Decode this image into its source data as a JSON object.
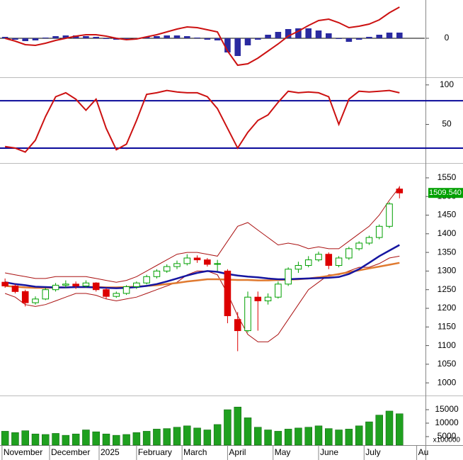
{
  "chart_data": [
    {
      "type": "line",
      "ylim": [
        -54,
        54
      ],
      "yticks": [
        0
      ],
      "series": [
        {
          "color": "#cc1111",
          "values": [
            0,
            -4,
            -9,
            -10,
            -7,
            -3,
            0,
            3,
            5,
            5,
            3,
            0,
            -2,
            -1,
            2,
            5,
            9,
            13,
            16,
            15,
            12,
            9,
            -18,
            -38,
            -36,
            -28,
            -18,
            -8,
            3,
            10,
            18,
            25,
            27,
            22,
            15,
            17,
            20,
            26,
            36,
            44
          ]
        }
      ],
      "histogram": {
        "color": "#2a2aa0",
        "values": [
          2,
          -2,
          -4,
          -3,
          1,
          3,
          4,
          4,
          3,
          2,
          -1,
          -2,
          -2,
          0,
          2,
          3,
          4,
          4,
          3,
          1,
          -2,
          -3,
          -20,
          -25,
          -10,
          -2,
          5,
          9,
          13,
          14,
          14,
          11,
          7,
          -1,
          -5,
          -2,
          2,
          5,
          8,
          8
        ]
      }
    },
    {
      "type": "line",
      "ylim": [
        2,
        107
      ],
      "yticks": [
        50,
        100
      ],
      "levels": [
        80,
        20
      ],
      "level_color": "#0a0a9a",
      "series": [
        {
          "color": "#cc1111",
          "values": [
            22,
            20,
            15,
            30,
            60,
            85,
            90,
            82,
            68,
            82,
            45,
            18,
            25,
            55,
            88,
            90,
            93,
            91,
            90,
            90,
            85,
            70,
            45,
            20,
            40,
            55,
            62,
            78,
            92,
            90,
            91,
            90,
            85,
            50,
            82,
            92,
            91,
            92,
            93,
            90
          ]
        }
      ]
    },
    {
      "type": "candlestick",
      "ylim": [
        968,
        1586
      ],
      "yticks": [
        1000,
        1050,
        1100,
        1150,
        1200,
        1250,
        1300,
        1350,
        1400,
        1450,
        1500,
        1550
      ],
      "up_color": "#00a000",
      "down_color": "#dd0000",
      "open": [
        1270,
        1260,
        1245,
        1215,
        1225,
        1250,
        1262,
        1265,
        1260,
        1268,
        1250,
        1232,
        1240,
        1258,
        1268,
        1285,
        1300,
        1312,
        1320,
        1335,
        1330,
        1318,
        1300,
        1170,
        1140,
        1230,
        1220,
        1230,
        1265,
        1305,
        1315,
        1330,
        1345,
        1315,
        1335,
        1360,
        1375,
        1390,
        1420,
        1520
      ],
      "high": [
        1280,
        1265,
        1250,
        1232,
        1255,
        1268,
        1275,
        1272,
        1275,
        1270,
        1255,
        1245,
        1262,
        1272,
        1290,
        1305,
        1318,
        1328,
        1345,
        1342,
        1335,
        1330,
        1305,
        1190,
        1245,
        1245,
        1240,
        1272,
        1310,
        1325,
        1340,
        1352,
        1350,
        1340,
        1365,
        1380,
        1395,
        1425,
        1485,
        1528
      ],
      "low": [
        1255,
        1240,
        1205,
        1210,
        1222,
        1245,
        1255,
        1252,
        1256,
        1245,
        1225,
        1228,
        1236,
        1252,
        1264,
        1280,
        1295,
        1305,
        1315,
        1322,
        1312,
        1300,
        1160,
        1085,
        1135,
        1140,
        1210,
        1226,
        1260,
        1295,
        1310,
        1325,
        1305,
        1310,
        1330,
        1355,
        1370,
        1385,
        1415,
        1495
      ],
      "close": [
        1260,
        1245,
        1215,
        1225,
        1250,
        1262,
        1265,
        1260,
        1268,
        1250,
        1232,
        1240,
        1258,
        1268,
        1285,
        1300,
        1312,
        1320,
        1335,
        1330,
        1318,
        1320,
        1180,
        1140,
        1230,
        1220,
        1230,
        1265,
        1305,
        1315,
        1330,
        1345,
        1315,
        1335,
        1360,
        1375,
        1390,
        1420,
        1480,
        1509.54
      ],
      "last_price_label": "1509.540",
      "last_price_color": "#00a000",
      "lines": [
        {
          "color": "#aa1111",
          "width": 1,
          "values": [
            1295,
            1290,
            1285,
            1280,
            1280,
            1285,
            1285,
            1285,
            1285,
            1280,
            1275,
            1270,
            1275,
            1285,
            1300,
            1315,
            1330,
            1345,
            1350,
            1350,
            1345,
            1340,
            1380,
            1420,
            1430,
            1410,
            1390,
            1370,
            1375,
            1370,
            1360,
            1365,
            1360,
            1360,
            1380,
            1400,
            1420,
            1450,
            1490,
            1525
          ]
        },
        {
          "color": "#aa1111",
          "width": 1,
          "values": [
            1240,
            1230,
            1210,
            1205,
            1210,
            1220,
            1230,
            1240,
            1240,
            1235,
            1225,
            1220,
            1225,
            1230,
            1240,
            1250,
            1260,
            1270,
            1290,
            1300,
            1300,
            1290,
            1240,
            1180,
            1130,
            1110,
            1110,
            1130,
            1170,
            1210,
            1250,
            1270,
            1290,
            1290,
            1300,
            1310,
            1310,
            1320,
            1335,
            1340
          ]
        },
        {
          "color": "#e07a30",
          "width": 2.5,
          "values": [
            1260,
            1258,
            1256,
            1255,
            1255,
            1256,
            1256,
            1257,
            1257,
            1257,
            1256,
            1256,
            1257,
            1258,
            1260,
            1262,
            1265,
            1268,
            1272,
            1275,
            1278,
            1278,
            1277,
            1276,
            1276,
            1275,
            1275,
            1276,
            1277,
            1278,
            1280,
            1283,
            1287,
            1292,
            1297,
            1302,
            1307,
            1312,
            1317,
            1322
          ]
        },
        {
          "color": "#1515a0",
          "width": 2.5,
          "values": [
            1270,
            1265,
            1262,
            1258,
            1257,
            1256,
            1256,
            1257,
            1257,
            1256,
            1255,
            1254,
            1255,
            1257,
            1260,
            1265,
            1272,
            1280,
            1288,
            1295,
            1300,
            1298,
            1292,
            1288,
            1285,
            1283,
            1280,
            1278,
            1278,
            1279,
            1280,
            1281,
            1282,
            1284,
            1292,
            1305,
            1322,
            1340,
            1355,
            1370
          ]
        }
      ]
    },
    {
      "type": "bar",
      "ylim": [
        1840,
        19740
      ],
      "yticks": [
        5000,
        10000,
        15000
      ],
      "multiplier_label": "x100000",
      "color": "#1fa01f",
      "values": [
        7000,
        6500,
        7200,
        6000,
        5800,
        6200,
        5500,
        6000,
        7500,
        6800,
        6000,
        5500,
        5800,
        6500,
        7000,
        7800,
        8000,
        8500,
        9000,
        8200,
        7500,
        9500,
        15000,
        16000,
        12000,
        8500,
        7500,
        7000,
        7800,
        8200,
        8500,
        9000,
        8000,
        7500,
        7800,
        9000,
        10500,
        13000,
        14500,
        13500
      ],
      "xlim": [
        -0.5,
        41.5
      ],
      "xticks": [
        {
          "value": -0.3,
          "label": "November"
        },
        {
          "value": 4.4,
          "label": "December"
        },
        {
          "value": 9.3,
          "label": "2025"
        },
        {
          "value": 13,
          "label": "February"
        },
        {
          "value": 17.5,
          "label": "March"
        },
        {
          "value": 22,
          "label": "April"
        },
        {
          "value": 26.5,
          "label": "May"
        },
        {
          "value": 31,
          "label": "June"
        },
        {
          "value": 35.5,
          "label": "July"
        },
        {
          "value": 40.7,
          "label": "Au"
        }
      ]
    }
  ]
}
